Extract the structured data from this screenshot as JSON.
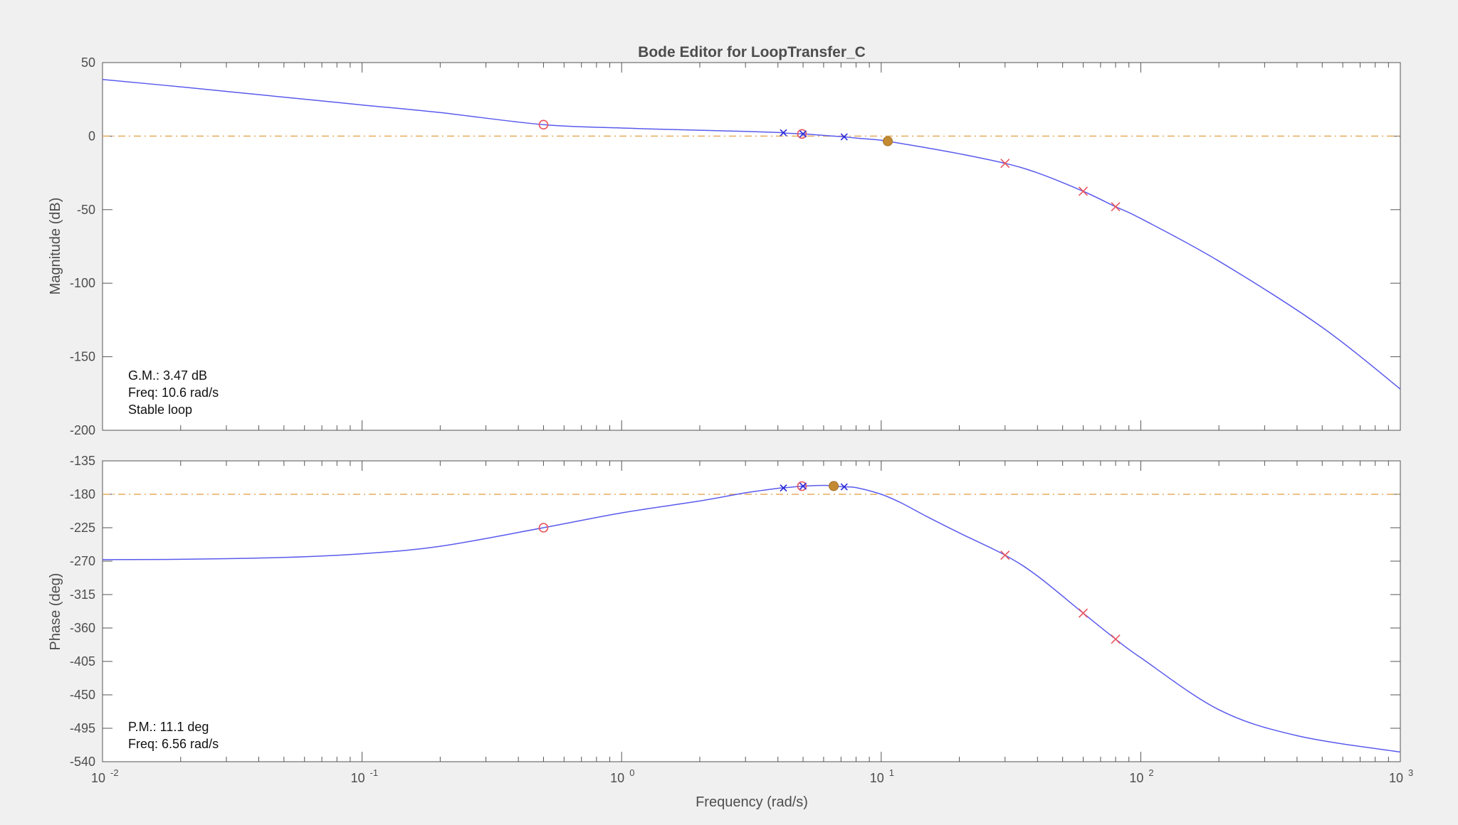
{
  "window": {
    "background": "#f0f0f0"
  },
  "chart_data": [
    {
      "panel": "magnitude",
      "type": "line",
      "title": "Bode Editor for LoopTransfer_C",
      "ylabel": "Magnitude (dB)",
      "xlabel": "",
      "xscale": "log",
      "xlim": [
        0.01,
        1000
      ],
      "ylim": [
        -200,
        50
      ],
      "yticks": [
        50,
        0,
        -50,
        -100,
        -150,
        -200
      ],
      "grid": false,
      "series": [
        {
          "color": "#5a5aee",
          "x": [
            0.01,
            0.02,
            0.05,
            0.1,
            0.2,
            0.5,
            1,
            2,
            3,
            4,
            4.3,
            5,
            6,
            7.2,
            8,
            10,
            10.6,
            15,
            20,
            30,
            40,
            60,
            80,
            100,
            200,
            500,
            1000
          ],
          "y": [
            38.5,
            33.5,
            26.5,
            21.2,
            16,
            7.8,
            5.5,
            4,
            3.2,
            2.5,
            2,
            1.5,
            0.5,
            -0.5,
            -1.3,
            -2.8,
            -3.47,
            -8,
            -12,
            -18.5,
            -25,
            -37.5,
            -48,
            -56,
            -85,
            -130,
            -172
          ]
        }
      ],
      "reference_line": {
        "y": 0,
        "style": "dash-dot",
        "color": "#e6ac5c"
      },
      "markers": [
        {
          "type": "zero",
          "x": 0.5,
          "y": 7.8,
          "color": "#e8545c"
        },
        {
          "type": "zero",
          "x": 4.95,
          "y": 1.5,
          "color": "#e8545c"
        },
        {
          "type": "pole",
          "x": 4.2,
          "y": 2.3,
          "color": "#2a2ad8"
        },
        {
          "type": "pole",
          "x": 5.0,
          "y": 1.5,
          "color": "#2a2ad8"
        },
        {
          "type": "pole",
          "x": 7.2,
          "y": -0.5,
          "color": "#2a2ad8"
        },
        {
          "type": "pole",
          "x": 30,
          "y": -18.5,
          "color": "#e8545c"
        },
        {
          "type": "pole",
          "x": 60,
          "y": -37.5,
          "color": "#e8545c"
        },
        {
          "type": "pole",
          "x": 80,
          "y": -48,
          "color": "#e8545c"
        },
        {
          "type": "margin",
          "x": 10.6,
          "y": -3.47,
          "color": "#c48a32"
        }
      ],
      "annotation": [
        "G.M.: 3.47 dB",
        "Freq: 10.6 rad/s",
        "Stable loop"
      ]
    },
    {
      "panel": "phase",
      "type": "line",
      "title": "",
      "ylabel": "Phase (deg)",
      "xlabel": "Frequency (rad/s)",
      "xscale": "log",
      "xlim": [
        0.01,
        1000
      ],
      "ylim": [
        -540,
        -135
      ],
      "yticks": [
        -135,
        -180,
        -225,
        -270,
        -315,
        -360,
        -405,
        -450,
        -495,
        -540
      ],
      "xticks": [
        "10^-2",
        "10^-1",
        "10^0",
        "10^1",
        "10^2",
        "10^3"
      ],
      "grid": false,
      "series": [
        {
          "color": "#5a5aee",
          "x": [
            0.01,
            0.02,
            0.05,
            0.1,
            0.2,
            0.5,
            1,
            2,
            3,
            4,
            4.2,
            5,
            6,
            6.56,
            7.2,
            8,
            10,
            12,
            15,
            20,
            30,
            40,
            60,
            80,
            100,
            200,
            400,
            1000
          ],
          "y": [
            -268,
            -267.5,
            -265,
            -260,
            -250,
            -225,
            -205,
            -189,
            -178,
            -172,
            -171.5,
            -169,
            -168,
            -168.9,
            -170,
            -171,
            -180,
            -192,
            -210,
            -232,
            -262,
            -290,
            -340,
            -375,
            -400,
            -470,
            -505,
            -527
          ]
        }
      ],
      "reference_line": {
        "y": -180,
        "style": "dash-dot",
        "color": "#e6ac5c"
      },
      "markers": [
        {
          "type": "zero",
          "x": 0.5,
          "y": -225,
          "color": "#e8545c"
        },
        {
          "type": "zero",
          "x": 4.95,
          "y": -169,
          "color": "#e8545c"
        },
        {
          "type": "pole",
          "x": 4.2,
          "y": -171.5,
          "color": "#2a2ad8"
        },
        {
          "type": "pole",
          "x": 5.0,
          "y": -169,
          "color": "#2a2ad8"
        },
        {
          "type": "pole",
          "x": 7.2,
          "y": -170,
          "color": "#2a2ad8"
        },
        {
          "type": "pole",
          "x": 30,
          "y": -262,
          "color": "#e8545c"
        },
        {
          "type": "pole",
          "x": 60,
          "y": -340,
          "color": "#e8545c"
        },
        {
          "type": "pole",
          "x": 80,
          "y": -375,
          "color": "#e8545c"
        },
        {
          "type": "margin",
          "x": 6.56,
          "y": -168.9,
          "color": "#c48a32"
        }
      ],
      "annotation": [
        "P.M.: 11.1 deg",
        "Freq: 6.56 rad/s"
      ]
    }
  ]
}
